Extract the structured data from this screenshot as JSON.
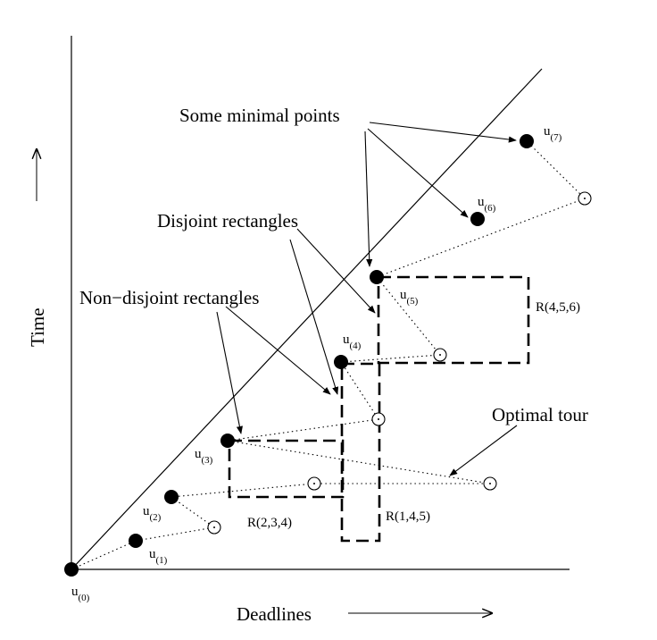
{
  "axes": {
    "x_label": "Deadlines",
    "y_label": "Time"
  },
  "annotations": {
    "minimal_points": "Some minimal points",
    "disjoint": "Disjoint rectangles",
    "non_disjoint": "Non−disjoint rectangles",
    "optimal_tour": "Optimal tour"
  },
  "rectangles": {
    "r456": "R(4,5,6)",
    "r234": "R(2,3,4)",
    "r145": "R(1,4,5)"
  },
  "points": [
    {
      "base": "u",
      "sub": "(0)"
    },
    {
      "base": "u",
      "sub": "(1)"
    },
    {
      "base": "u",
      "sub": "(2)"
    },
    {
      "base": "u",
      "sub": "(3)"
    },
    {
      "base": "u",
      "sub": "(4)"
    },
    {
      "base": "u",
      "sub": "(5)"
    },
    {
      "base": "u",
      "sub": "(6)"
    },
    {
      "base": "u",
      "sub": "(7)"
    }
  ]
}
